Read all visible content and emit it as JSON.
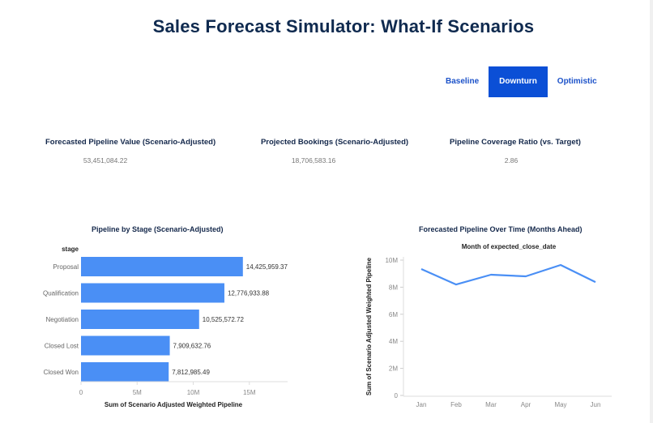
{
  "header": {
    "title": "Sales Forecast Simulator: What-If Scenarios"
  },
  "scenario_tabs": [
    {
      "label": "Baseline",
      "active": false
    },
    {
      "label": "Downturn",
      "active": true
    },
    {
      "label": "Optimistic",
      "active": false
    }
  ],
  "kpis": [
    {
      "label": "Forecasted Pipeline Value (Scenario-Adjusted)",
      "value": "53,451,084.22"
    },
    {
      "label": "Projected Bookings (Scenario-Adjusted)",
      "value": "18,706,583.16"
    },
    {
      "label": "Pipeline Coverage Ratio (vs. Target)",
      "value": "2.86"
    }
  ],
  "colors": {
    "accent": "#0b4fd6",
    "bar": "#4a8ff5",
    "line": "#4a8ff5",
    "title": "#14284b"
  },
  "chart_data": [
    {
      "type": "bar",
      "orientation": "horizontal",
      "title": "Pipeline by Stage (Scenario-Adjusted)",
      "category_header": "stage",
      "categories": [
        "Proposal",
        "Qualification",
        "Negotiation",
        "Closed Lost",
        "Closed Won"
      ],
      "values": [
        14425959.37,
        12776933.88,
        10525572.72,
        7909632.76,
        7812985.49
      ],
      "value_labels": [
        "14,425,959.37",
        "12,776,933.88",
        "10,525,572.72",
        "7,909,632.76",
        "7,812,985.49"
      ],
      "xlabel": "Sum of Scenario Adjusted Weighted Pipeline",
      "ylabel": "stage",
      "xticks": [
        "0",
        "5M",
        "10M",
        "15M"
      ],
      "xlim": [
        0,
        18000000
      ]
    },
    {
      "type": "line",
      "title": "Forecasted Pipeline Over Time (Months Ahead)",
      "subtitle": "Month of expected_close_date",
      "x": [
        "Jan",
        "Feb",
        "Mar",
        "Apr",
        "May",
        "Jun"
      ],
      "values": [
        9340000,
        8200000,
        8920000,
        8800000,
        9640000,
        8380000
      ],
      "ylabel": "Sum of Scenario Adjusted Weighted Pipeline",
      "yticks": [
        "0",
        "2M",
        "4M",
        "6M",
        "8M",
        "10M"
      ],
      "ylim": [
        0,
        10000000
      ]
    }
  ]
}
